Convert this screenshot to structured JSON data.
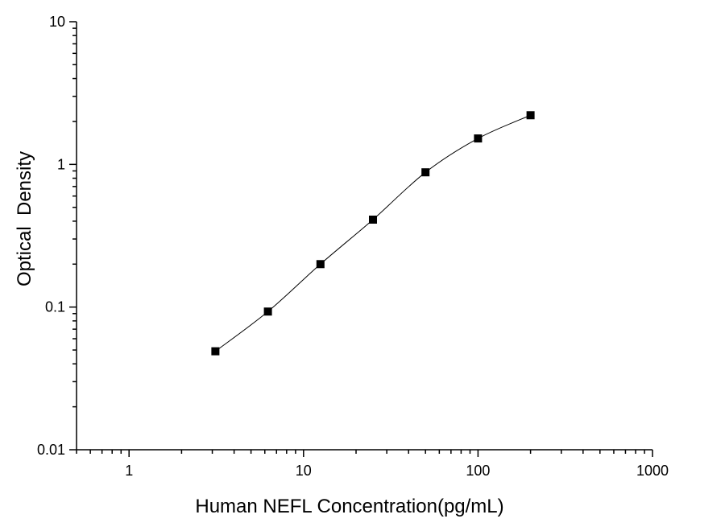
{
  "chart_data": {
    "type": "line",
    "xlabel": "Human NEFL Concentration(pg/mL)",
    "ylabel": "Optical  Density",
    "x_scale": "log",
    "y_scale": "log",
    "xlim": [
      0.5,
      1000
    ],
    "ylim": [
      0.01,
      10
    ],
    "x_ticks": [
      1,
      10,
      100,
      1000
    ],
    "x_tick_labels": [
      "1",
      "10",
      "100",
      "1000"
    ],
    "y_ticks": [
      0.01,
      0.1,
      1,
      10
    ],
    "y_tick_labels": [
      "0.01",
      "0.1",
      "1",
      "10"
    ],
    "grid": false,
    "legend": false,
    "marker": "square",
    "color": "#000000",
    "series": [
      {
        "x": [
          3.125,
          6.25,
          12.5,
          25,
          50,
          100,
          200
        ],
        "y": [
          0.049,
          0.093,
          0.2,
          0.41,
          0.88,
          1.52,
          2.21
        ]
      }
    ]
  }
}
